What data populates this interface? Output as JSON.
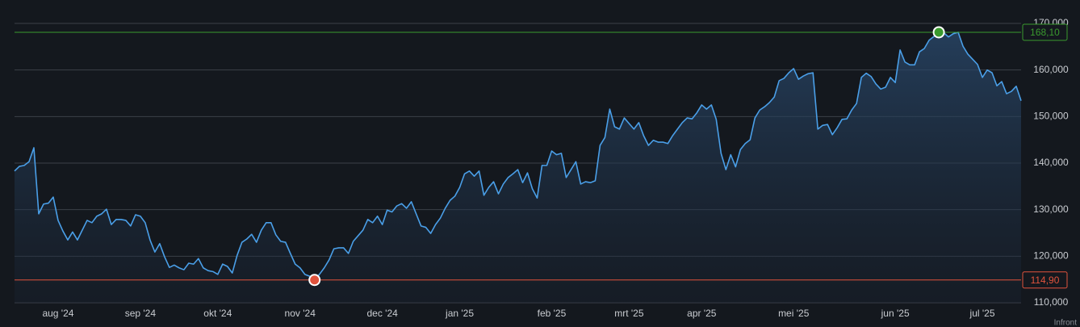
{
  "chart_data": {
    "type": "line",
    "categories": [
      null,
      null,
      null,
      null,
      null,
      null,
      null,
      null,
      null,
      "aug '24",
      null,
      null,
      null,
      null,
      null,
      null,
      null,
      null,
      null,
      null,
      null,
      null,
      null,
      null,
      null,
      null,
      "sep '24",
      null,
      null,
      null,
      null,
      null,
      null,
      null,
      null,
      null,
      null,
      null,
      null,
      null,
      null,
      null,
      "okt '24",
      null,
      null,
      null,
      null,
      null,
      null,
      null,
      null,
      null,
      null,
      null,
      null,
      null,
      null,
      null,
      null,
      "nov '24",
      null,
      null,
      null,
      null,
      null,
      null,
      null,
      null,
      null,
      null,
      null,
      null,
      null,
      null,
      null,
      null,
      "dec '24",
      null,
      null,
      null,
      null,
      null,
      null,
      null,
      null,
      null,
      null,
      null,
      null,
      null,
      null,
      null,
      "jan '25",
      null,
      null,
      null,
      null,
      null,
      null,
      null,
      null,
      null,
      null,
      null,
      null,
      null,
      null,
      null,
      null,
      null,
      null,
      "feb '25",
      null,
      null,
      null,
      null,
      null,
      null,
      null,
      null,
      null,
      null,
      null,
      null,
      null,
      null,
      null,
      "mrt '25",
      null,
      null,
      null,
      null,
      null,
      null,
      null,
      null,
      null,
      null,
      null,
      null,
      null,
      null,
      "apr '25",
      null,
      null,
      null,
      null,
      null,
      null,
      null,
      null,
      null,
      null,
      null,
      null,
      null,
      null,
      null,
      null,
      null,
      null,
      "mei '25",
      null,
      null,
      null,
      null,
      null,
      null,
      null,
      null,
      null,
      null,
      null,
      null,
      null,
      null,
      null,
      null,
      null,
      null,
      null,
      null,
      "jun '25",
      null,
      null,
      null,
      null,
      null,
      null,
      null,
      null,
      null,
      null,
      null,
      null,
      null,
      null,
      null,
      null,
      null,
      "jul '25",
      null,
      null,
      null,
      null,
      null,
      null,
      null,
      null
    ],
    "values": [
      138.3,
      139.3,
      139.5,
      140.3,
      143.3,
      129.1,
      131.2,
      131.4,
      132.7,
      127.7,
      125.4,
      123.5,
      125.2,
      123.5,
      125.6,
      127.7,
      127.2,
      128.6,
      129.1,
      130.1,
      126.8,
      127.9,
      127.9,
      127.7,
      126.5,
      128.9,
      128.6,
      127.2,
      123.5,
      120.9,
      122.7,
      119.9,
      117.6,
      118.1,
      117.5,
      117.1,
      118.5,
      118.3,
      119.5,
      117.5,
      116.9,
      116.7,
      116.1,
      118.3,
      117.8,
      116.4,
      120.2,
      123.0,
      123.7,
      124.7,
      123.0,
      125.6,
      127.2,
      127.2,
      124.6,
      123.2,
      123.0,
      120.6,
      118.3,
      117.5,
      116.1,
      115.7,
      114.9,
      116.1,
      117.5,
      119.2,
      121.6,
      121.8,
      121.8,
      120.6,
      123.2,
      124.4,
      125.6,
      127.9,
      127.2,
      128.6,
      126.8,
      129.9,
      129.5,
      130.8,
      131.3,
      130.3,
      131.7,
      129.1,
      126.5,
      126.2,
      124.9,
      126.8,
      128.2,
      130.3,
      132.0,
      132.9,
      134.8,
      137.7,
      138.3,
      137.2,
      138.3,
      133.1,
      134.8,
      136.0,
      133.4,
      135.5,
      136.9,
      137.7,
      138.6,
      135.8,
      137.9,
      134.5,
      132.5,
      139.5,
      139.5,
      142.6,
      141.8,
      142.1,
      136.9,
      138.6,
      140.3,
      135.5,
      136.0,
      135.8,
      136.2,
      143.8,
      145.5,
      151.6,
      147.8,
      147.3,
      149.7,
      148.5,
      147.3,
      148.7,
      145.9,
      143.8,
      144.9,
      144.5,
      144.5,
      144.2,
      145.9,
      147.3,
      148.7,
      149.7,
      149.5,
      150.8,
      152.5,
      151.6,
      152.5,
      149.4,
      142.1,
      138.6,
      141.8,
      139.2,
      142.9,
      144.2,
      145.0,
      149.7,
      151.4,
      152.1,
      153.0,
      154.2,
      157.7,
      158.2,
      159.4,
      160.3,
      158.0,
      158.7,
      159.2,
      159.4,
      147.3,
      148.1,
      148.3,
      146.1,
      147.6,
      149.4,
      149.5,
      151.4,
      152.8,
      158.4,
      159.3,
      158.6,
      157.0,
      155.9,
      156.3,
      158.4,
      157.3,
      164.3,
      161.7,
      161.1,
      161.1,
      163.9,
      164.6,
      166.4,
      167.2,
      168.1,
      168.0,
      167.1,
      167.8,
      168.1,
      165.1,
      163.4,
      162.3,
      161.2,
      158.4,
      160.0,
      159.4,
      156.6,
      157.5,
      154.9,
      155.4,
      156.5,
      153.4
    ],
    "color": "#4a9fe8",
    "ylim": [
      110,
      170
    ],
    "yticks": [
      {
        "value": 110,
        "label": "110,000"
      },
      {
        "value": 120,
        "label": "120,000"
      },
      {
        "value": 130,
        "label": "130,000"
      },
      {
        "value": 140,
        "label": "140,000"
      },
      {
        "value": 150,
        "label": "150,000"
      },
      {
        "value": 160,
        "label": "160,000"
      },
      {
        "value": 170,
        "label": "170,000"
      }
    ],
    "grid": true,
    "reference_lines": [
      {
        "value": 168.1,
        "label": "168,10",
        "color": "#3a9a2e",
        "point": 191
      },
      {
        "value": 114.9,
        "label": "114,90",
        "color": "#e0533d",
        "point": 62
      }
    ],
    "source": "Infront"
  }
}
